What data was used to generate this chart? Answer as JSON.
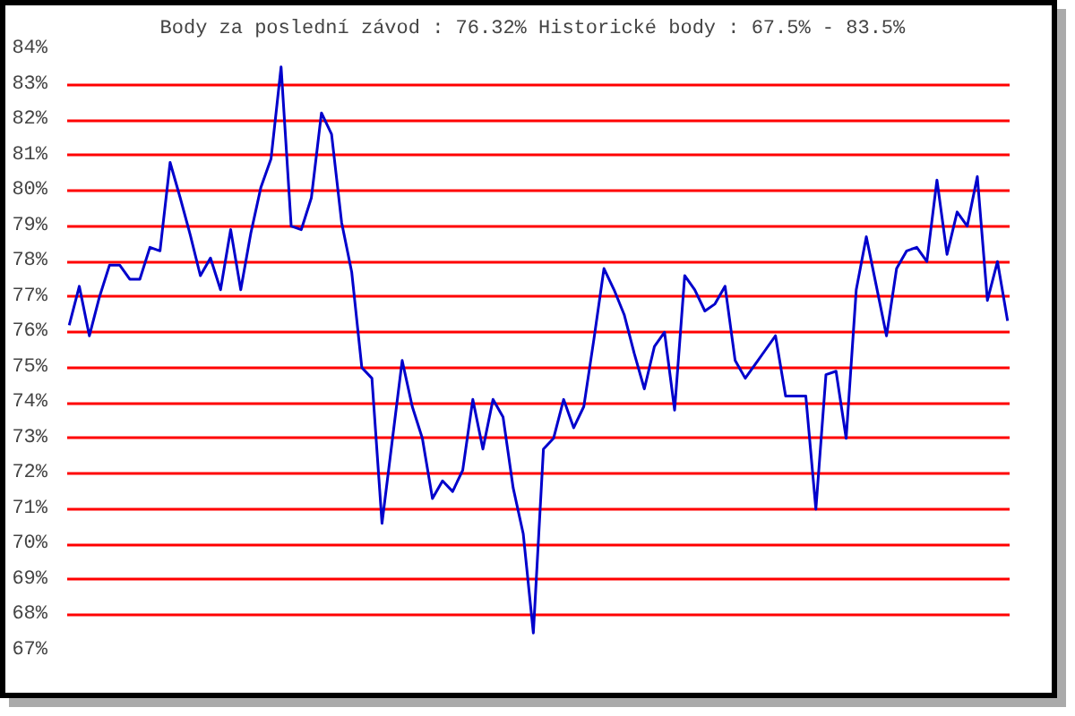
{
  "chart_data": {
    "type": "line",
    "title": "Body za poslední závod : 76.32%  Historické body : 67.5% - 83.5%",
    "categories": [
      null,
      null,
      null,
      null,
      null,
      null,
      null,
      null,
      null,
      null,
      null,
      null,
      null,
      null,
      null,
      null,
      null,
      null,
      null,
      null,
      null,
      null,
      null,
      null,
      null,
      null,
      null,
      null,
      null,
      null,
      null,
      null,
      null,
      null,
      null,
      null,
      null,
      null,
      null,
      null,
      null,
      null,
      null,
      null,
      null,
      null,
      null,
      null,
      null,
      null,
      null,
      null,
      null,
      null,
      null,
      null,
      null,
      null,
      null,
      null,
      null,
      null,
      null,
      null,
      null,
      null,
      null,
      null,
      null,
      null,
      null,
      null,
      null,
      null,
      null,
      null,
      null,
      null,
      null,
      null,
      null,
      null,
      null,
      null,
      null,
      null,
      null,
      null,
      null,
      null,
      null,
      null,
      null,
      null
    ],
    "series": [
      {
        "color": "#0000cc",
        "values": [
          76.2,
          77.3,
          75.9,
          77.0,
          77.9,
          77.9,
          77.5,
          77.5,
          78.4,
          78.3,
          80.8,
          79.8,
          78.75,
          77.6,
          78.1,
          77.2,
          78.9,
          77.2,
          78.8,
          80.1,
          80.9,
          83.5,
          79.0,
          78.9,
          79.8,
          82.2,
          81.6,
          79.1,
          77.7,
          75.0,
          74.7,
          70.6,
          72.9,
          75.2,
          73.9,
          73.0,
          71.3,
          71.8,
          71.5,
          72.1,
          74.1,
          72.7,
          74.1,
          73.6,
          71.6,
          70.3,
          67.5,
          72.7,
          73.0,
          74.1,
          73.3,
          73.9,
          75.8,
          77.8,
          77.2,
          76.5,
          75.4,
          74.4,
          75.6,
          76.0,
          73.8,
          77.6,
          77.2,
          76.6,
          76.8,
          77.3,
          75.2,
          74.7,
          75.1,
          75.5,
          75.9,
          74.2,
          74.2,
          74.2,
          71.0,
          74.8,
          74.9,
          73.0,
          77.2,
          78.7,
          77.3,
          75.9,
          77.8,
          78.3,
          78.4,
          78.0,
          80.3,
          78.2,
          79.4,
          79.0,
          80.4,
          76.9,
          78.0,
          76.32
        ]
      }
    ],
    "ylim": [
      67,
      84
    ],
    "yticks": [
      {
        "value": 67,
        "label": "67%"
      },
      {
        "value": 68,
        "label": "68%"
      },
      {
        "value": 69,
        "label": "69%"
      },
      {
        "value": 70,
        "label": "70%"
      },
      {
        "value": 71,
        "label": "71%"
      },
      {
        "value": 72,
        "label": "72%"
      },
      {
        "value": 73,
        "label": "73%"
      },
      {
        "value": 74,
        "label": "74%"
      },
      {
        "value": 75,
        "label": "75%"
      },
      {
        "value": 76,
        "label": "76%"
      },
      {
        "value": 77,
        "label": "77%"
      },
      {
        "value": 78,
        "label": "78%"
      },
      {
        "value": 79,
        "label": "79%"
      },
      {
        "value": 80,
        "label": "80%"
      },
      {
        "value": 81,
        "label": "81%"
      },
      {
        "value": 82,
        "label": "82%"
      },
      {
        "value": 83,
        "label": "83%"
      },
      {
        "value": 84,
        "label": "84%"
      }
    ],
    "grid": "y",
    "tick_labels": "y",
    "marker": "none",
    "line_style": "solid"
  }
}
